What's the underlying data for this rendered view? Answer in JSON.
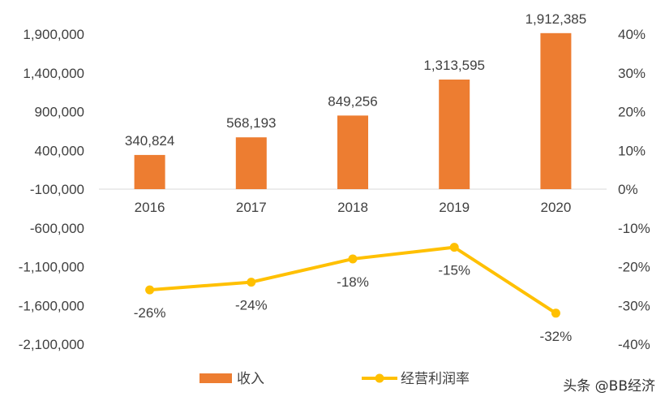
{
  "chart_data": {
    "type": "bar+line",
    "categories": [
      "2016",
      "2017",
      "2018",
      "2019",
      "2020"
    ],
    "series": [
      {
        "name": "收入",
        "type": "bar",
        "axis": "left",
        "values": [
          340824,
          568193,
          849256,
          1313595,
          1912385
        ],
        "labels": [
          "340,824",
          "568,193",
          "849,256",
          "1,313,595",
          "1,912,385"
        ],
        "color": "#ED7D31"
      },
      {
        "name": "经营利润率",
        "type": "line",
        "axis": "right",
        "values": [
          -26,
          -24,
          -18,
          -15,
          -32
        ],
        "labels": [
          "-26%",
          "-24%",
          "-18%",
          "-15%",
          "-32%"
        ],
        "color": "#FFC000"
      }
    ],
    "y_left": {
      "ylim": [
        -2100000,
        1900000
      ],
      "ticks": [
        1900000,
        1400000,
        900000,
        400000,
        -100000,
        -600000,
        -1100000,
        -1600000,
        -2100000
      ],
      "tick_labels": [
        "1,900,000",
        "1,400,000",
        "900,000",
        "400,000",
        "-100,000",
        "-600,000",
        "-1,100,000",
        "-1,600,000",
        "-2,100,000"
      ]
    },
    "y_right": {
      "ylim": [
        -40,
        40
      ],
      "ticks": [
        40,
        30,
        20,
        10,
        0,
        -10,
        -20,
        -30,
        -40
      ],
      "tick_labels": [
        "40%",
        "30%",
        "20%",
        "10%",
        "0%",
        "-10%",
        "-20%",
        "-30%",
        "-40%"
      ]
    },
    "grid": false,
    "legend_position": "bottom"
  },
  "watermark": "头条 @BB经济"
}
